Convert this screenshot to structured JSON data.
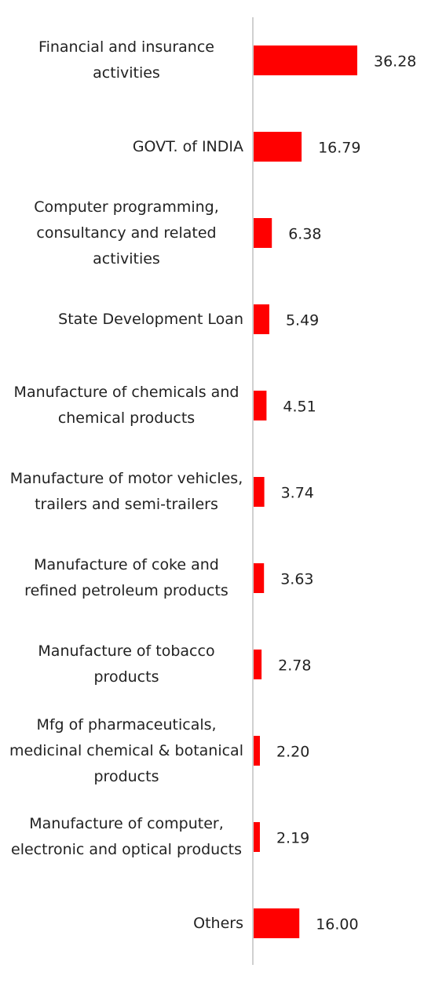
{
  "chart_data": {
    "type": "bar",
    "orientation": "horizontal",
    "categories": [
      "Financial and insurance activities",
      "GOVT. of INDIA",
      "Computer programming, consultancy and related activities",
      "State Development Loan",
      "Manufacture of chemicals and chemical products",
      "Manufacture of motor vehicles, trailers and semi-trailers",
      "Manufacture of coke and refined petroleum products",
      "Manufacture of tobacco products",
      "Mfg of pharmaceuticals, medicinal chemical & botanical products",
      "Manufacture of computer, electronic and optical products",
      "Others"
    ],
    "values": [
      36.28,
      16.79,
      6.38,
      5.49,
      4.51,
      3.74,
      3.63,
      2.78,
      2.2,
      2.19,
      16.0
    ],
    "value_labels": [
      "36.28",
      "16.79",
      "6.38",
      "5.49",
      "4.51",
      "3.74",
      "3.63",
      "2.78",
      "2.20",
      "2.19",
      "16.00"
    ],
    "color": "#ff0000"
  }
}
